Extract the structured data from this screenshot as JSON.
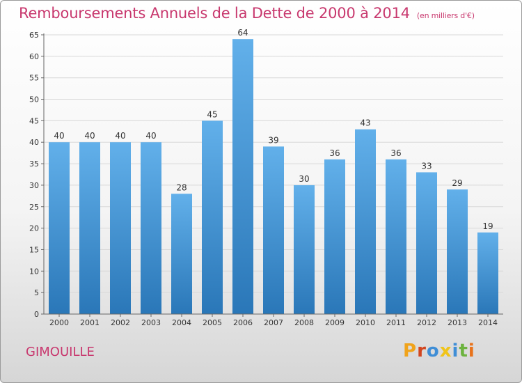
{
  "header": {
    "title": "Remboursements Annuels de la Dette de 2000 à 2014",
    "subtitle": "(en milliers d'€)"
  },
  "footer": {
    "city": "GIMOUILLE",
    "logo_letters": [
      "P",
      "r",
      "o",
      "x",
      "i",
      "t",
      "i"
    ],
    "logo_colors": [
      "#f0a31b",
      "#d2461f",
      "#3f8ed6",
      "#f0c419",
      "#3f8ed6",
      "#6db33f",
      "#e8731b"
    ]
  },
  "colors": {
    "accent": "#c8386e",
    "bar_top": "#62b0ea",
    "bar_bottom": "#2a77b8"
  },
  "chart_data": {
    "type": "bar",
    "categories": [
      "2000",
      "2001",
      "2002",
      "2003",
      "2004",
      "2005",
      "2006",
      "2007",
      "2008",
      "2009",
      "2010",
      "2011",
      "2012",
      "2013",
      "2014"
    ],
    "values": [
      40,
      40,
      40,
      40,
      28,
      45,
      64,
      39,
      30,
      36,
      43,
      36,
      33,
      29,
      19
    ],
    "ylim": [
      0,
      65
    ],
    "yticks": [
      0,
      5,
      10,
      15,
      20,
      25,
      30,
      35,
      40,
      45,
      50,
      55,
      60,
      65
    ],
    "grid": true
  }
}
